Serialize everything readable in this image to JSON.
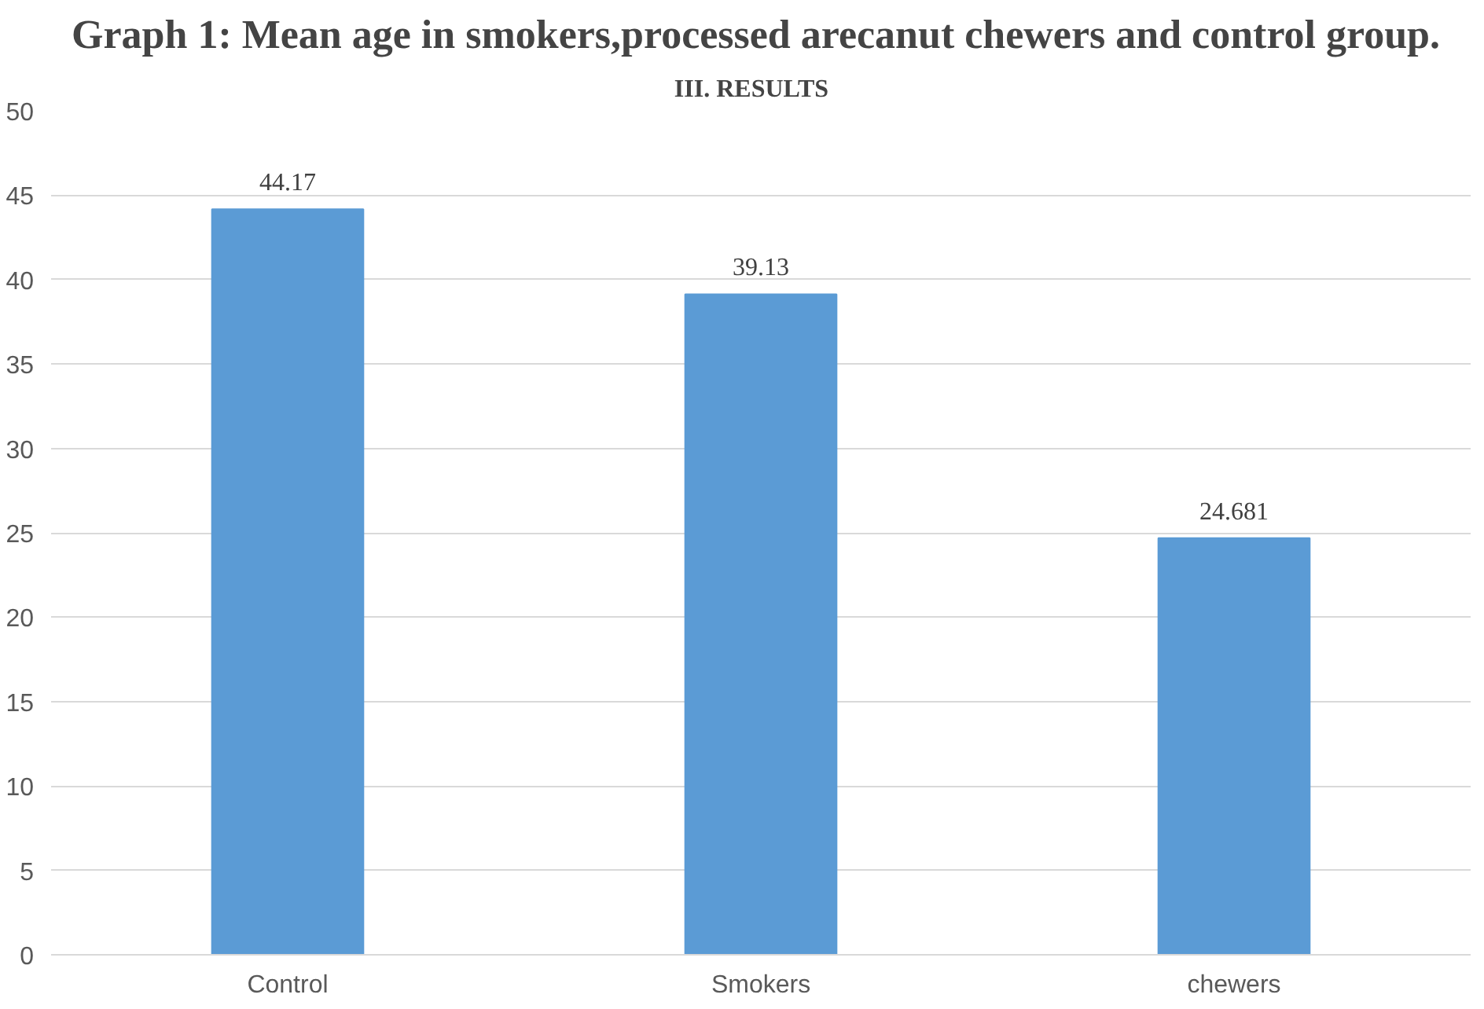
{
  "chart_data": {
    "type": "bar",
    "title": "Graph 1: Mean age in smokers,processed arecanut chewers and control  group.",
    "annotations": [
      "III.    RESULTS"
    ],
    "categories": [
      "Control",
      "Smokers",
      "chewers"
    ],
    "values": [
      44.17,
      39.13,
      24.681
    ],
    "color": "#5b9bd5",
    "ylim": [
      0,
      50
    ],
    "yticks": [
      0,
      5,
      10,
      15,
      20,
      25,
      30,
      35,
      40,
      45,
      50
    ],
    "grid": "y",
    "data_labels": true
  }
}
